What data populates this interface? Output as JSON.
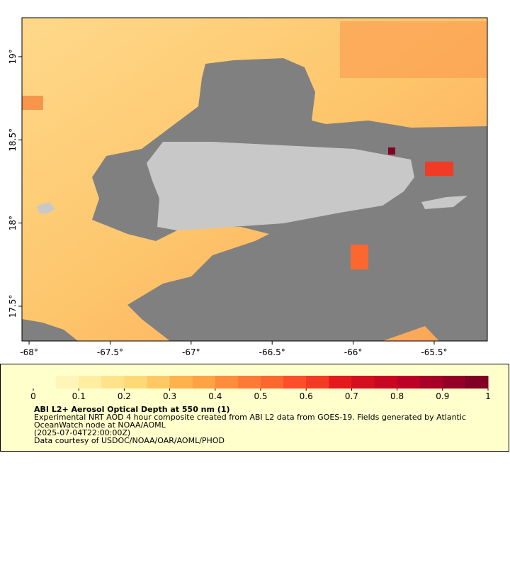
{
  "map": {
    "xlim": [
      -68.044,
      -65.172
    ],
    "ylim": [
      17.291,
      19.234
    ],
    "xticks": [
      {
        "value": -68,
        "label": "-68°"
      },
      {
        "value": -67.5,
        "label": "-67.5°"
      },
      {
        "value": -67,
        "label": "-67°"
      },
      {
        "value": -66.5,
        "label": "-66.5°"
      },
      {
        "value": -66,
        "label": "-66°"
      },
      {
        "value": -65.5,
        "label": "-65.5°"
      }
    ],
    "yticks": [
      {
        "value": 17.5,
        "label": "17.5°"
      },
      {
        "value": 18,
        "label": "18°"
      },
      {
        "value": 18.5,
        "label": "18.5°"
      },
      {
        "value": 19,
        "label": "19°"
      }
    ]
  },
  "colorbar": {
    "lim": [
      0,
      1
    ],
    "ticks": [
      0,
      0.1,
      0.2,
      0.3,
      0.4,
      0.5,
      0.6,
      0.7,
      0.8,
      0.9,
      1
    ],
    "colors": [
      "#ffffcc",
      "#fff5b8",
      "#ffeda0",
      "#fee38b",
      "#fed976",
      "#fec965",
      "#feb24c",
      "#fea345",
      "#fd8d3c",
      "#fd7a36",
      "#fc6730",
      "#fc4e2a",
      "#f23b25",
      "#e31a1c",
      "#d40f1f",
      "#c80822",
      "#bd0026",
      "#a80026",
      "#940026",
      "#800026"
    ]
  },
  "caption": {
    "title": "ABI L2+ Aerosol Optical Depth at 550 nm (1)",
    "lines": [
      "Experimental NRT AOD 4 hour composite created from ABI L2 data from GOES-19. Fields generated by Atlantic",
      "OceanWatch node at NOAA/AOML",
      "(2025-07-04T22:00:00Z)",
      "Data courtesy of USDOC/NOAA/OAR/AOML/PHOD"
    ]
  }
}
